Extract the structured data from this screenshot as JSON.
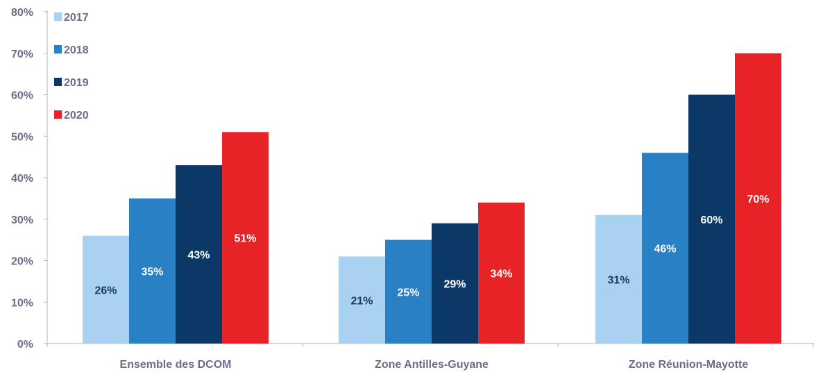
{
  "chart_data": {
    "type": "bar",
    "categories": [
      "Ensemble des DCOM",
      "Zone Antilles-Guyane",
      "Zone Réunion-Mayotte"
    ],
    "series": [
      {
        "name": "2017",
        "values": [
          26,
          21,
          31
        ],
        "labels": [
          "26%",
          "21%",
          "31%"
        ],
        "color": "#a9d1f0",
        "label_color": "#1f3a5c"
      },
      {
        "name": "2018",
        "values": [
          35,
          25,
          46
        ],
        "labels": [
          "35%",
          "25%",
          "46%"
        ],
        "color": "#2a80c4",
        "label_color": "#ffffff"
      },
      {
        "name": "2019",
        "values": [
          43,
          29,
          60
        ],
        "labels": [
          "43%",
          "29%",
          "60%"
        ],
        "color": "#0b3866",
        "label_color": "#ffffff"
      },
      {
        "name": "2020",
        "values": [
          51,
          34,
          70
        ],
        "labels": [
          "51%",
          "34%",
          "70%"
        ],
        "color": "#e62326",
        "label_color": "#ffffff"
      }
    ],
    "y_ticks": [
      "0%",
      "10%",
      "20%",
      "30%",
      "40%",
      "50%",
      "60%",
      "70%",
      "80%"
    ],
    "ylim": [
      0,
      80
    ],
    "grid": false,
    "legend_position": "top-left",
    "title": "",
    "xlabel": "",
    "ylabel": ""
  }
}
